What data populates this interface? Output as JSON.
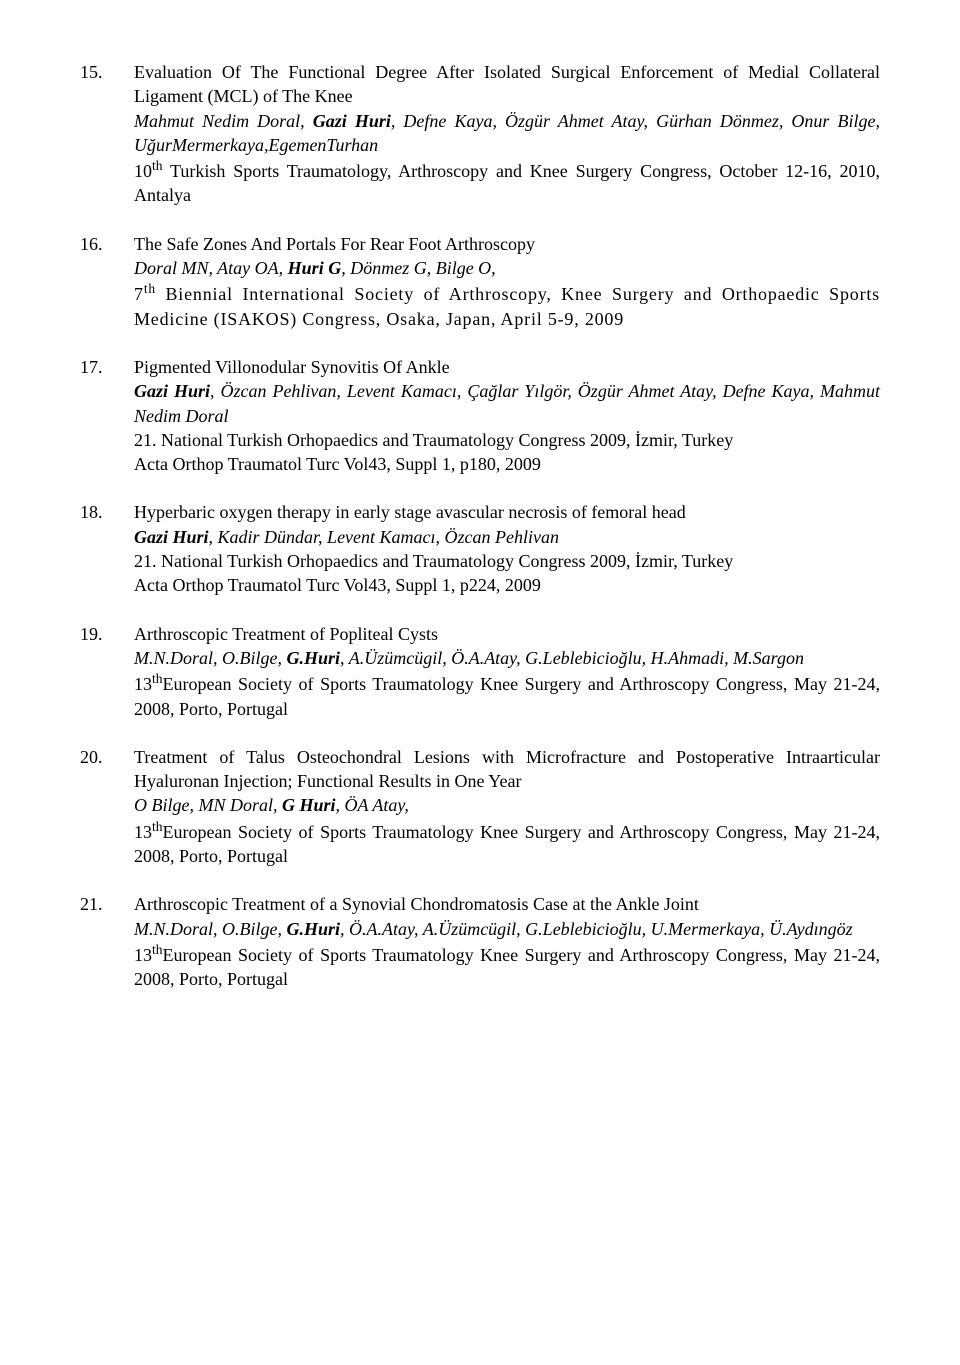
{
  "entries": [
    {
      "num": "15.",
      "title": "Evaluation Of The Functional Degree After Isolated Surgical Enforcement of Medial Collateral Ligament (MCL) of The Knee",
      "authors_pre": "Mahmut Nedim Doral, ",
      "authors_bold": "Gazi Huri",
      "authors_post": ", Defne Kaya, Özgür Ahmet Atay, Gürhan Dönmez, Onur Bilge, UğurMermerkaya,EgemenTurhan",
      "pub_pre": "10",
      "pub_sup": "th",
      "pub_post": " Turkish Sports Traumatology, Arthroscopy and Knee Surgery Congress, October 12-16, 2010, Antalya"
    },
    {
      "num": "16.",
      "title": "The Safe Zones And Portals For Rear Foot Arthroscopy",
      "authors_pre": "Doral MN, Atay OA, ",
      "authors_bold": "Huri G",
      "authors_post": ", Dönmez G, Bilge O,",
      "pub_pre": "7",
      "pub_sup": "th",
      "pub_post": " Biennial International Society of Arthroscopy, Knee Surgery and Orthopaedic Sports Medicine (ISAKOS) Congress, Osaka, Japan, April 5-9, 2009"
    },
    {
      "num": "17.",
      "title": " Pigmented Villonodular Synovitis Of Ankle",
      "authors_pre": "",
      "authors_bold": "Gazi Huri",
      "authors_post": ", Özcan Pehlivan, Levent Kamacı, Çağlar Yılgör, Özgür Ahmet Atay, Defne Kaya, Mahmut Nedim Doral",
      "pub": "21. National Turkish Orhopaedics and Traumatology Congress 2009, İzmir, Turkey",
      "pub2": "Acta Orthop Traumatol Turc Vol43, Suppl 1, p180, 2009"
    },
    {
      "num": "18.",
      "title": "Hyperbaric oxygen therapy in early stage avascular necrosis of femoral head",
      "authors_pre": "",
      "authors_bold": "Gazi Huri",
      "authors_post": ", Kadir Dündar, Levent Kamacı, Özcan Pehlivan",
      "pub": "21. National Turkish Orhopaedics and Traumatology Congress 2009, İzmir, Turkey",
      "pub2": "Acta Orthop Traumatol Turc Vol43, Suppl 1, p224, 2009"
    },
    {
      "num": "19.",
      "title": "Arthroscopic Treatment of Popliteal Cysts",
      "authors_pre": "M.N.Doral, O.Bilge, ",
      "authors_bold": "G.Huri",
      "authors_post": ", A.Üzümcügil, Ö.A.Atay, G.Leblebicioğlu, H.Ahmadi, M.Sargon",
      "pub_pre": "13",
      "pub_sup": "th",
      "pub_post": "European Society of Sports Traumatology Knee Surgery and Arthroscopy Congress, May 21-24, 2008, Porto, Portugal"
    },
    {
      "num": "20.",
      "title": "Treatment of Talus Osteochondral Lesions with Microfracture and Postoperative Intraarticular Hyaluronan Injection; Functional Results in One Year",
      "authors_pre": "O Bilge, MN Doral, ",
      "authors_bold": "G Huri",
      "authors_post": ", ÖA Atay,",
      "pub_pre": "13",
      "pub_sup": "th",
      "pub_post": "European Society of Sports Traumatology Knee Surgery and Arthroscopy Congress, May 21-24, 2008, Porto, Portugal"
    },
    {
      "num": "21.",
      "title": "Arthroscopic Treatment of a Synovial Chondromatosis Case at the Ankle Joint",
      "authors_pre": "M.N.Doral, O.Bilge, ",
      "authors_bold": "G.Huri",
      "authors_post": ", Ö.A.Atay, A.Üzümcügil, G.Leblebicioğlu, U.Mermerkaya, Ü.Aydıngöz",
      "pub_pre": "13",
      "pub_sup": "th",
      "pub_post": "European Society of Sports Traumatology Knee Surgery and Arthroscopy Congress, May 21-24, 2008, Porto, Portugal"
    }
  ]
}
